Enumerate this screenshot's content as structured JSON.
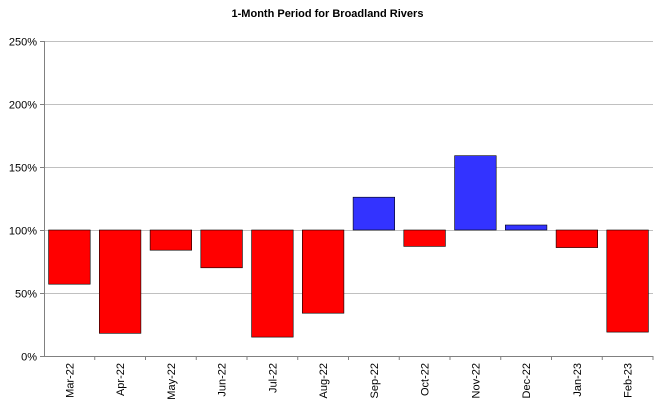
{
  "chart_data": {
    "type": "bar",
    "title": "1-Month Period for Broadland Rivers",
    "xlabel": "",
    "ylabel": "",
    "ylim": [
      0,
      250
    ],
    "y_ticks": [
      0,
      50,
      100,
      150,
      200,
      250
    ],
    "y_tick_labels": [
      "0%",
      "50%",
      "100%",
      "150%",
      "200%",
      "250%"
    ],
    "baseline": 100,
    "grid": true,
    "categories": [
      "Mar-22",
      "Apr-22",
      "May-22",
      "Jun-22",
      "Jul-22",
      "Aug-22",
      "Sep-22",
      "Oct-22",
      "Nov-22",
      "Dec-22",
      "Jan-23",
      "Feb-23"
    ],
    "values": [
      57,
      18,
      84,
      70,
      15,
      34,
      126,
      87,
      159,
      104,
      86,
      19
    ],
    "colors": {
      "below": "#ff0000",
      "above": "#3333ff",
      "grid": "#c0c0c0",
      "axis": "#808080"
    }
  }
}
